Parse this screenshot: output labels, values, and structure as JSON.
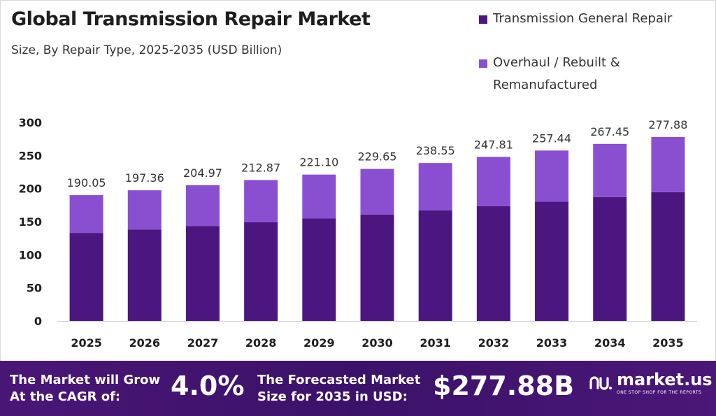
{
  "header": {
    "title": "Global Transmission Repair Market",
    "subtitle": "Size, By Repair Type, 2025-2035 (USD Billion)"
  },
  "legend": {
    "items": [
      {
        "label_line1": "Transmission General Repair",
        "label_line2": "",
        "color": "#4b1680"
      },
      {
        "label_line1": "Overhaul / Rebuilt &",
        "label_line2": "Remanufactured",
        "color": "#8a4fd1"
      }
    ]
  },
  "chart_data": {
    "type": "bar",
    "stacked": true,
    "categories": [
      "2025",
      "2026",
      "2027",
      "2028",
      "2029",
      "2030",
      "2031",
      "2032",
      "2033",
      "2034",
      "2035"
    ],
    "series": [
      {
        "name": "Transmission General Repair",
        "values": [
          133.0,
          138.2,
          143.5,
          149.0,
          154.8,
          160.8,
          167.0,
          173.5,
          180.2,
          187.2,
          194.5
        ],
        "color": "#4b1680"
      },
      {
        "name": "Overhaul / Rebuilt & Remanufactured",
        "values": [
          57.05,
          59.16,
          61.47,
          63.87,
          66.3,
          68.85,
          71.55,
          74.31,
          77.24,
          80.25,
          83.38
        ],
        "color": "#8a4fd1"
      }
    ],
    "totals": [
      "190.05",
      "197.36",
      "204.97",
      "212.87",
      "221.10",
      "229.65",
      "238.55",
      "247.81",
      "257.44",
      "267.45",
      "277.88"
    ],
    "yticks": [
      0,
      50,
      100,
      150,
      200,
      250,
      300
    ],
    "ylim": [
      0,
      300
    ],
    "grid": false,
    "legend_position": "top-right",
    "title": "Global Transmission Repair Market",
    "xlabel": "",
    "ylabel": ""
  },
  "footer": {
    "cagr_label_line1": "The Market will Grow",
    "cagr_label_line2": "At the CAGR of:",
    "cagr_value": "4.0%",
    "forecast_label_line1": "The Forecasted Market",
    "forecast_label_line2": "Size for 2035 in USD:",
    "forecast_value": "$277.88B",
    "brand_name": "market.us",
    "brand_tagline": "ONE STOP SHOP FOR THE REPORTS",
    "brand_icon": "market-us-logo-icon"
  }
}
